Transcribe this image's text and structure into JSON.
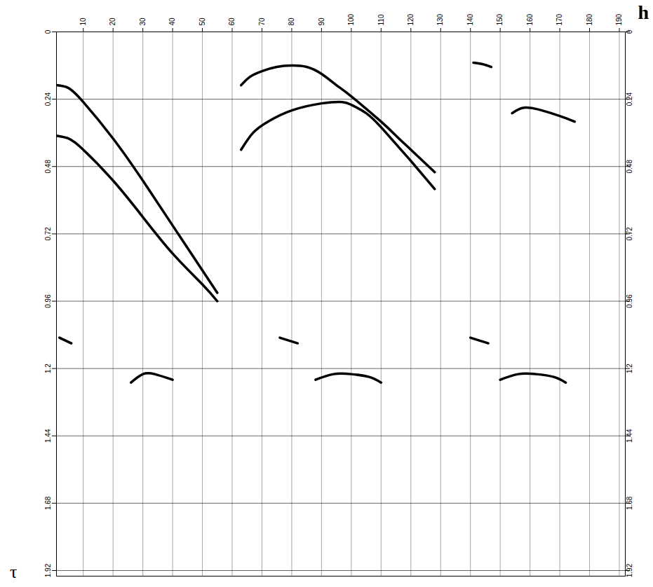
{
  "chart_data": {
    "type": "line",
    "x_label": "h",
    "y_label": "τ",
    "xlim": [
      1,
      192
    ],
    "ylim": [
      0,
      1.94
    ],
    "xticks": [
      10,
      20,
      30,
      40,
      50,
      60,
      70,
      80,
      90,
      100,
      110,
      120,
      130,
      140,
      150,
      160,
      170,
      180,
      190
    ],
    "yticks": [
      0,
      0.24,
      0.48,
      0.72,
      0.96,
      1.2,
      1.44,
      1.68,
      1.92
    ],
    "grid": true,
    "series": [
      {
        "color": "#000000",
        "x": [
          1,
          5,
          10,
          20,
          30,
          40,
          50,
          55
        ],
        "values": [
          0.19,
          0.2,
          0.25,
          0.38,
          0.53,
          0.69,
          0.85,
          0.93
        ]
      },
      {
        "color": "#000000",
        "x": [
          1,
          5,
          10,
          20,
          30,
          40,
          50,
          55
        ],
        "values": [
          0.37,
          0.38,
          0.42,
          0.53,
          0.66,
          0.79,
          0.9,
          0.96
        ]
      },
      {
        "color": "#000000",
        "x": [
          63,
          66,
          70,
          75,
          80,
          85,
          90,
          95,
          100,
          110,
          115,
          120,
          128
        ],
        "values": [
          0.19,
          0.16,
          0.14,
          0.125,
          0.12,
          0.125,
          0.15,
          0.19,
          0.23,
          0.32,
          0.37,
          0.42,
          0.5
        ]
      },
      {
        "color": "#000000",
        "x": [
          63,
          67,
          72,
          80,
          90,
          97,
          100,
          105,
          110,
          115,
          120,
          128
        ],
        "values": [
          0.42,
          0.36,
          0.32,
          0.28,
          0.255,
          0.25,
          0.26,
          0.29,
          0.34,
          0.4,
          0.46,
          0.56
        ]
      },
      {
        "color": "#000000",
        "x": [
          141,
          144,
          147
        ],
        "values": [
          0.11,
          0.115,
          0.125
        ]
      },
      {
        "color": "#000000",
        "x": [
          154,
          158,
          164,
          170,
          175
        ],
        "values": [
          0.29,
          0.27,
          0.28,
          0.3,
          0.32
        ]
      },
      {
        "color": "#000000",
        "x": [
          2,
          4,
          6
        ],
        "values": [
          1.09,
          1.1,
          1.11
        ]
      },
      {
        "color": "#000000",
        "x": [
          76,
          79,
          82
        ],
        "values": [
          1.09,
          1.1,
          1.11
        ]
      },
      {
        "color": "#000000",
        "x": [
          140,
          143,
          146
        ],
        "values": [
          1.09,
          1.1,
          1.11
        ]
      },
      {
        "color": "#000000",
        "x": [
          26,
          30,
          34,
          40
        ],
        "values": [
          1.25,
          1.22,
          1.22,
          1.24
        ]
      },
      {
        "color": "#000000",
        "x": [
          88,
          94,
          100,
          106,
          110
        ],
        "values": [
          1.24,
          1.22,
          1.22,
          1.23,
          1.25
        ]
      },
      {
        "color": "#000000",
        "x": [
          150,
          156,
          162,
          168,
          172
        ],
        "values": [
          1.24,
          1.22,
          1.22,
          1.23,
          1.25
        ]
      }
    ]
  }
}
